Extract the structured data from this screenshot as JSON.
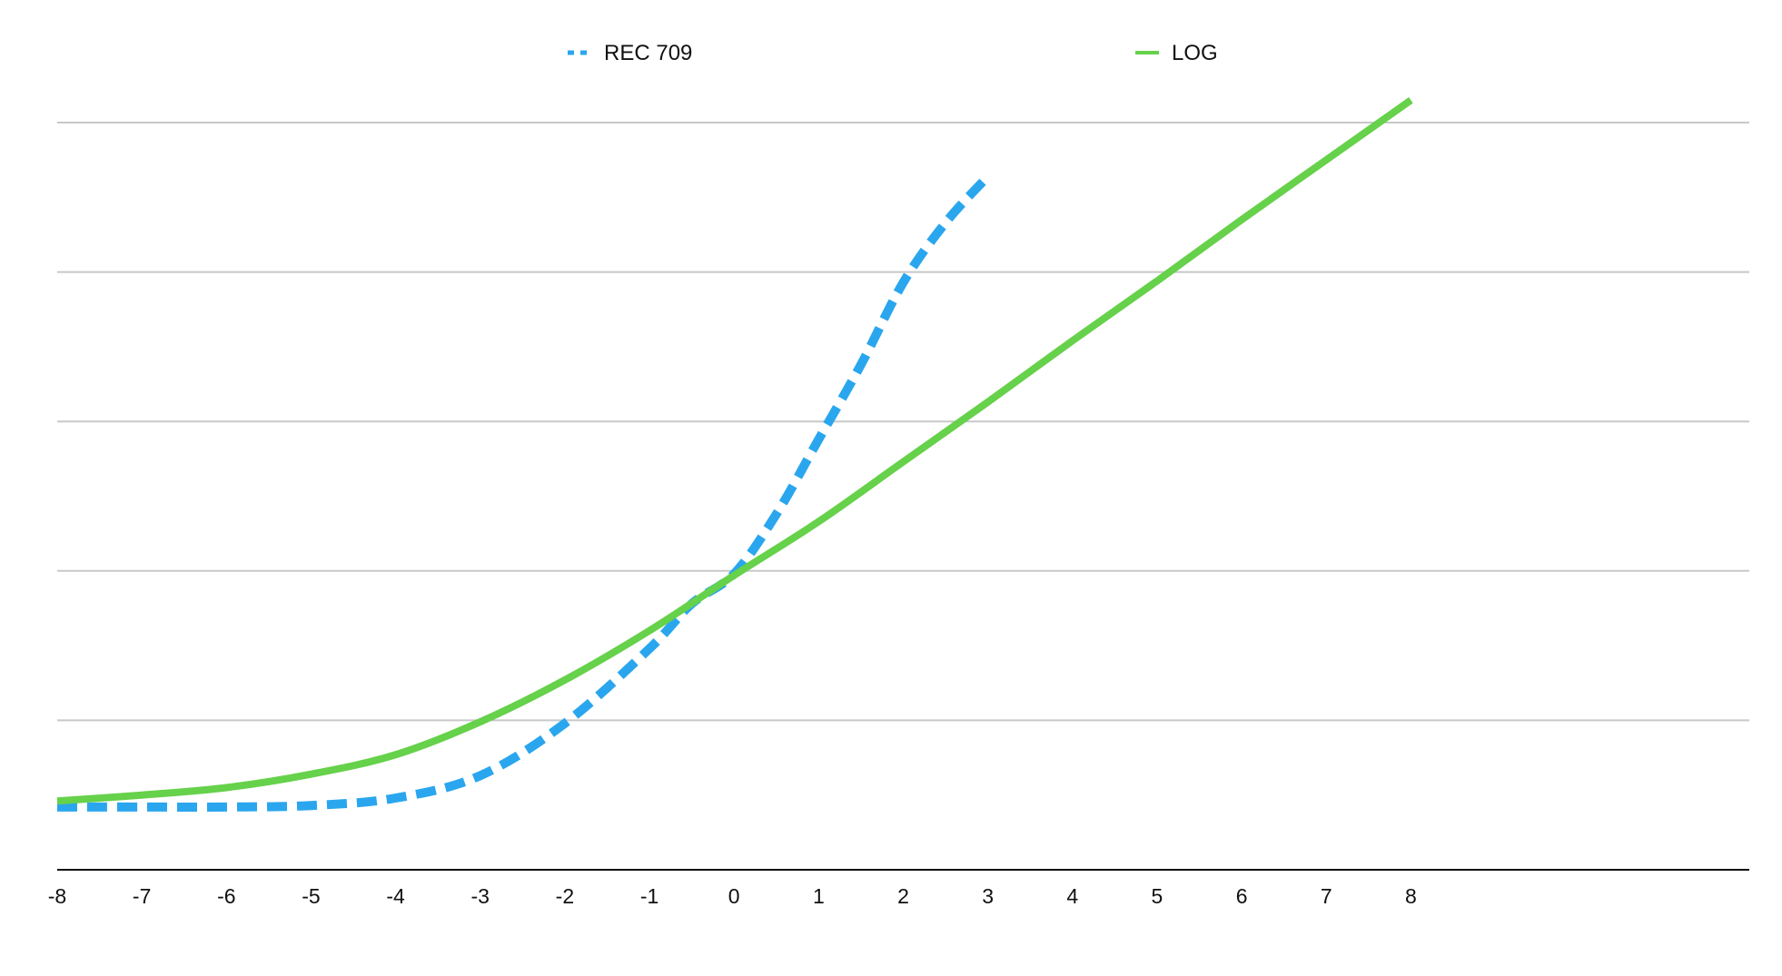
{
  "chart_data": {
    "type": "line",
    "title": "",
    "xlabel": "",
    "ylabel": "",
    "xlim": [
      -8,
      12
    ],
    "ylim": [
      0,
      5
    ],
    "x_ticks": [
      "-8",
      "-7",
      "-6",
      "-5",
      "-4",
      "-3",
      "-2",
      "-1",
      "0",
      "1",
      "2",
      "3",
      "4",
      "5",
      "6",
      "7",
      "8"
    ],
    "y_ticks_shown": false,
    "grid": "horizontal",
    "legend_position": "top-center",
    "series": [
      {
        "name": "REC 709",
        "style": "dashed",
        "color": "#2AA6EE",
        "x": [
          -8,
          -7,
          -6,
          -5,
          -4,
          -3,
          -2,
          -1,
          -0.5,
          0,
          0.5,
          1,
          1.5,
          2,
          2.5,
          3
        ],
        "y": [
          0.42,
          0.42,
          0.42,
          0.43,
          0.48,
          0.63,
          0.98,
          1.48,
          1.78,
          1.98,
          2.38,
          2.88,
          3.38,
          3.93,
          4.33,
          4.64
        ]
      },
      {
        "name": "LOG",
        "style": "solid",
        "color": "#66D14A",
        "x": [
          -8,
          -7,
          -6,
          -5,
          -4,
          -3,
          -2,
          -1,
          0,
          1,
          2,
          3,
          4,
          5,
          6,
          7,
          8
        ],
        "y": [
          0.46,
          0.5,
          0.55,
          0.64,
          0.77,
          0.99,
          1.27,
          1.6,
          1.97,
          2.33,
          2.73,
          3.13,
          3.54,
          3.94,
          4.35,
          4.75,
          5.15
        ]
      }
    ]
  }
}
